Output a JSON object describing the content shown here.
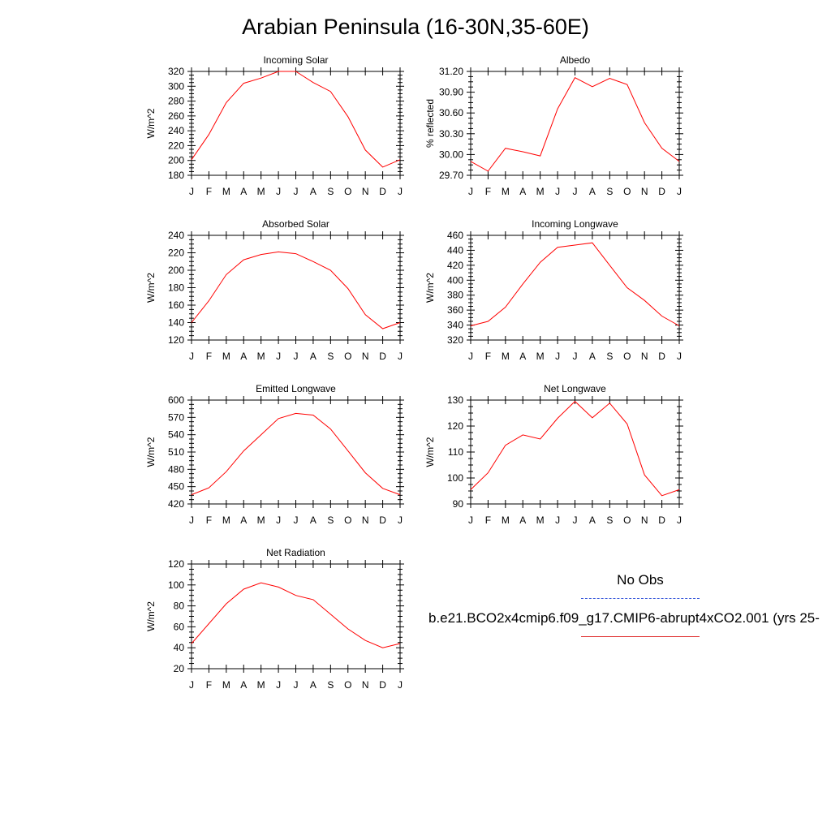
{
  "title": "Arabian Peninsula (16-30N,35-60E)",
  "colors": {
    "model": "#ff0000",
    "obs": "#4f6bde",
    "axis": "#000000"
  },
  "legend": {
    "obs_label": "No Obs",
    "case_label": "b.e21.BCO2x4cmip6.f09_g17.CMIP6-abrupt4xCO2.001 (yrs 25-"
  },
  "chart_data": [
    {
      "type": "line",
      "title": "Incoming Solar",
      "ylabel": "W/m^2",
      "categories": [
        "J",
        "F",
        "M",
        "A",
        "M",
        "J",
        "J",
        "A",
        "S",
        "O",
        "N",
        "D",
        "J"
      ],
      "ylim": [
        180,
        320
      ],
      "yticks": [
        "320",
        "300",
        "280",
        "260",
        "240",
        "220",
        "200",
        "180"
      ],
      "values": [
        201,
        235,
        278,
        304,
        311,
        320,
        320,
        305,
        293,
        259,
        214,
        191,
        201
      ]
    },
    {
      "type": "line",
      "title": "Albedo",
      "ylabel": "% reflected",
      "categories": [
        "J",
        "F",
        "M",
        "A",
        "M",
        "J",
        "J",
        "A",
        "S",
        "O",
        "N",
        "D",
        "J"
      ],
      "ylim": [
        29.7,
        31.2
      ],
      "yticks": [
        "31.20",
        "30.90",
        "30.60",
        "30.30",
        "30.00",
        "29.70"
      ],
      "values": [
        29.9,
        29.76,
        30.09,
        30.04,
        29.98,
        30.66,
        31.11,
        30.98,
        31.1,
        31.01,
        30.46,
        30.09,
        29.9
      ]
    },
    {
      "type": "line",
      "title": "Absorbed Solar",
      "ylabel": "W/m^2",
      "categories": [
        "J",
        "F",
        "M",
        "A",
        "M",
        "J",
        "J",
        "A",
        "S",
        "O",
        "N",
        "D",
        "J"
      ],
      "ylim": [
        120,
        240
      ],
      "yticks": [
        "240",
        "220",
        "200",
        "180",
        "160",
        "140",
        "120"
      ],
      "values": [
        140,
        165,
        195,
        212,
        218,
        221,
        219,
        210,
        200,
        179,
        149,
        133,
        140
      ]
    },
    {
      "type": "line",
      "title": "Incoming Longwave",
      "ylabel": "W/m^2",
      "categories": [
        "J",
        "F",
        "M",
        "A",
        "M",
        "J",
        "J",
        "A",
        "S",
        "O",
        "N",
        "D",
        "J"
      ],
      "ylim": [
        320,
        460
      ],
      "yticks": [
        "460",
        "440",
        "420",
        "400",
        "380",
        "360",
        "340",
        "320"
      ],
      "values": [
        339,
        345,
        364,
        395,
        424,
        444,
        447,
        450,
        420,
        390,
        373,
        352,
        339
      ]
    },
    {
      "type": "line",
      "title": "Emitted Longwave",
      "ylabel": "W/m^2",
      "categories": [
        "J",
        "F",
        "M",
        "A",
        "M",
        "J",
        "J",
        "A",
        "S",
        "O",
        "N",
        "D",
        "J"
      ],
      "ylim": [
        420,
        600
      ],
      "yticks": [
        "600",
        "570",
        "540",
        "510",
        "480",
        "450",
        "420"
      ],
      "values": [
        436,
        448,
        476,
        512,
        540,
        568,
        577,
        574,
        550,
        512,
        474,
        447,
        436
      ]
    },
    {
      "type": "line",
      "title": "Net Longwave",
      "ylabel": "W/m^2",
      "categories": [
        "J",
        "F",
        "M",
        "A",
        "M",
        "J",
        "J",
        "A",
        "S",
        "O",
        "N",
        "D",
        "J"
      ],
      "ylim": [
        90,
        130
      ],
      "yticks": [
        "130",
        "120",
        "110",
        "100",
        "90"
      ],
      "values": [
        95.5,
        102,
        112.6,
        116.6,
        115,
        123,
        129.5,
        123.2,
        128.8,
        120.8,
        101.2,
        93.2,
        95.5
      ]
    },
    {
      "type": "line",
      "title": "Net Radiation",
      "ylabel": "W/m^2",
      "categories": [
        "J",
        "F",
        "M",
        "A",
        "M",
        "J",
        "J",
        "A",
        "S",
        "O",
        "N",
        "D",
        "J"
      ],
      "ylim": [
        20,
        120
      ],
      "yticks": [
        "120",
        "100",
        "80",
        "60",
        "40",
        "20"
      ],
      "values": [
        44,
        63,
        82,
        96,
        102,
        98,
        90,
        86,
        72,
        58,
        47,
        40,
        44
      ]
    }
  ]
}
